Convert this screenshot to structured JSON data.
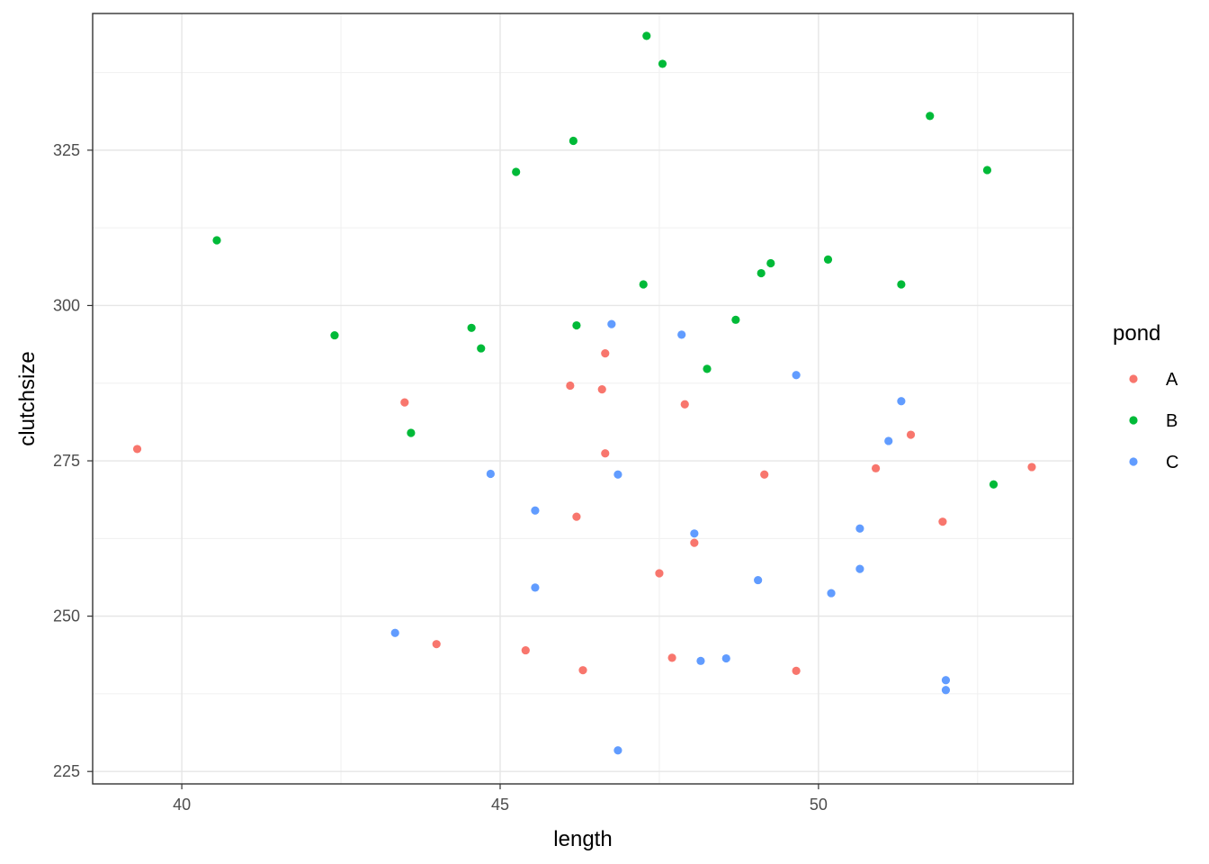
{
  "chart_data": {
    "type": "scatter",
    "xlabel": "length",
    "ylabel": "clutchsize",
    "xlim": [
      38.6,
      54.0
    ],
    "ylim": [
      223,
      347
    ],
    "x_ticks": [
      40,
      45,
      50
    ],
    "y_ticks": [
      225,
      250,
      275,
      300,
      325
    ],
    "grid": true,
    "legend": {
      "title": "pond",
      "position": "right"
    },
    "series": [
      {
        "name": "A",
        "color": "#F8766D",
        "points": [
          [
            39.3,
            276.9
          ],
          [
            43.5,
            284.4
          ],
          [
            44.0,
            245.5
          ],
          [
            45.4,
            244.5
          ],
          [
            46.1,
            287.1
          ],
          [
            46.2,
            266.0
          ],
          [
            46.3,
            241.3
          ],
          [
            46.6,
            286.5
          ],
          [
            46.65,
            292.3
          ],
          [
            46.65,
            276.2
          ],
          [
            47.5,
            256.9
          ],
          [
            47.7,
            243.3
          ],
          [
            47.9,
            284.1
          ],
          [
            48.05,
            261.8
          ],
          [
            49.15,
            272.8
          ],
          [
            49.65,
            241.2
          ],
          [
            50.9,
            273.8
          ],
          [
            51.45,
            279.2
          ],
          [
            51.95,
            265.2
          ],
          [
            53.35,
            274.0
          ]
        ]
      },
      {
        "name": "B",
        "color": "#00BA38",
        "points": [
          [
            40.55,
            310.5
          ],
          [
            42.4,
            295.2
          ],
          [
            43.6,
            279.5
          ],
          [
            44.55,
            296.4
          ],
          [
            44.7,
            293.1
          ],
          [
            45.25,
            321.5
          ],
          [
            46.15,
            326.5
          ],
          [
            46.2,
            296.8
          ],
          [
            47.25,
            303.4
          ],
          [
            47.3,
            343.4
          ],
          [
            47.55,
            338.9
          ],
          [
            48.25,
            289.8
          ],
          [
            48.7,
            297.7
          ],
          [
            49.1,
            305.2
          ],
          [
            49.25,
            306.8
          ],
          [
            50.15,
            307.4
          ],
          [
            51.3,
            303.4
          ],
          [
            51.75,
            330.5
          ],
          [
            52.65,
            321.8
          ],
          [
            52.75,
            271.2
          ]
        ]
      },
      {
        "name": "C",
        "color": "#619CFF",
        "points": [
          [
            43.35,
            247.3
          ],
          [
            44.85,
            272.9
          ],
          [
            45.55,
            267.0
          ],
          [
            45.55,
            254.6
          ],
          [
            46.75,
            297.0
          ],
          [
            46.85,
            272.8
          ],
          [
            46.85,
            228.4
          ],
          [
            47.85,
            295.3
          ],
          [
            48.05,
            263.3
          ],
          [
            48.15,
            242.8
          ],
          [
            48.55,
            243.2
          ],
          [
            49.05,
            255.8
          ],
          [
            49.65,
            288.8
          ],
          [
            50.2,
            253.7
          ],
          [
            50.65,
            264.1
          ],
          [
            50.65,
            257.6
          ],
          [
            51.1,
            278.2
          ],
          [
            51.3,
            284.6
          ],
          [
            52.0,
            239.7
          ],
          [
            52.0,
            238.1
          ]
        ]
      }
    ]
  }
}
